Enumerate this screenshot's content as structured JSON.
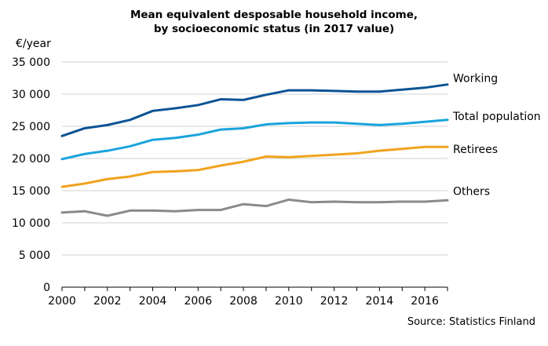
{
  "chart_data": {
    "type": "line",
    "title": "Mean equivalent desposable household income,",
    "subtitle": "by socioeconomic status (in 2017 value)",
    "ylabel": "€/year",
    "xlabel": "",
    "source": "Source: Statistics Finland",
    "x": [
      2000,
      2001,
      2002,
      2003,
      2004,
      2005,
      2006,
      2007,
      2008,
      2009,
      2010,
      2011,
      2012,
      2013,
      2014,
      2015,
      2016,
      2017
    ],
    "xticks": [
      "2000",
      "2002",
      "2004",
      "2006",
      "2008",
      "2010",
      "2012",
      "2014",
      "2016"
    ],
    "yticks": [
      "0",
      "5 000",
      "10 000",
      "15 000",
      "20 000",
      "25 000",
      "30 000",
      "35 000"
    ],
    "ylim": [
      0,
      35000
    ],
    "xlim": [
      2000,
      2017
    ],
    "grid": true,
    "legend": "labels at line ends (right)",
    "series": [
      {
        "name": "Working",
        "color": "#0b5394",
        "values": [
          23500,
          24700,
          25200,
          26000,
          27400,
          27800,
          28300,
          29200,
          29100,
          29900,
          30600,
          30600,
          30500,
          30400,
          30400,
          30700,
          31000,
          31500
        ]
      },
      {
        "name": "Total population",
        "color": "#1aa3dd",
        "values": [
          19900,
          20700,
          21200,
          21900,
          22900,
          23200,
          23700,
          24500,
          24700,
          25300,
          25500,
          25600,
          25600,
          25400,
          25200,
          25400,
          25700,
          26000
        ]
      },
      {
        "name": "Retirees",
        "color": "#f0a31e",
        "values": [
          15600,
          16100,
          16800,
          17200,
          17900,
          18000,
          18200,
          18900,
          19500,
          20300,
          20200,
          20400,
          20600,
          20800,
          21200,
          21500,
          21800,
          21800
        ]
      },
      {
        "name": "Others",
        "color": "#8a8a8a",
        "values": [
          11600,
          11800,
          11100,
          11900,
          11900,
          11800,
          12000,
          12000,
          12900,
          12600,
          13600,
          13200,
          13300,
          13200,
          13200,
          13300,
          13300,
          13500
        ]
      }
    ]
  }
}
